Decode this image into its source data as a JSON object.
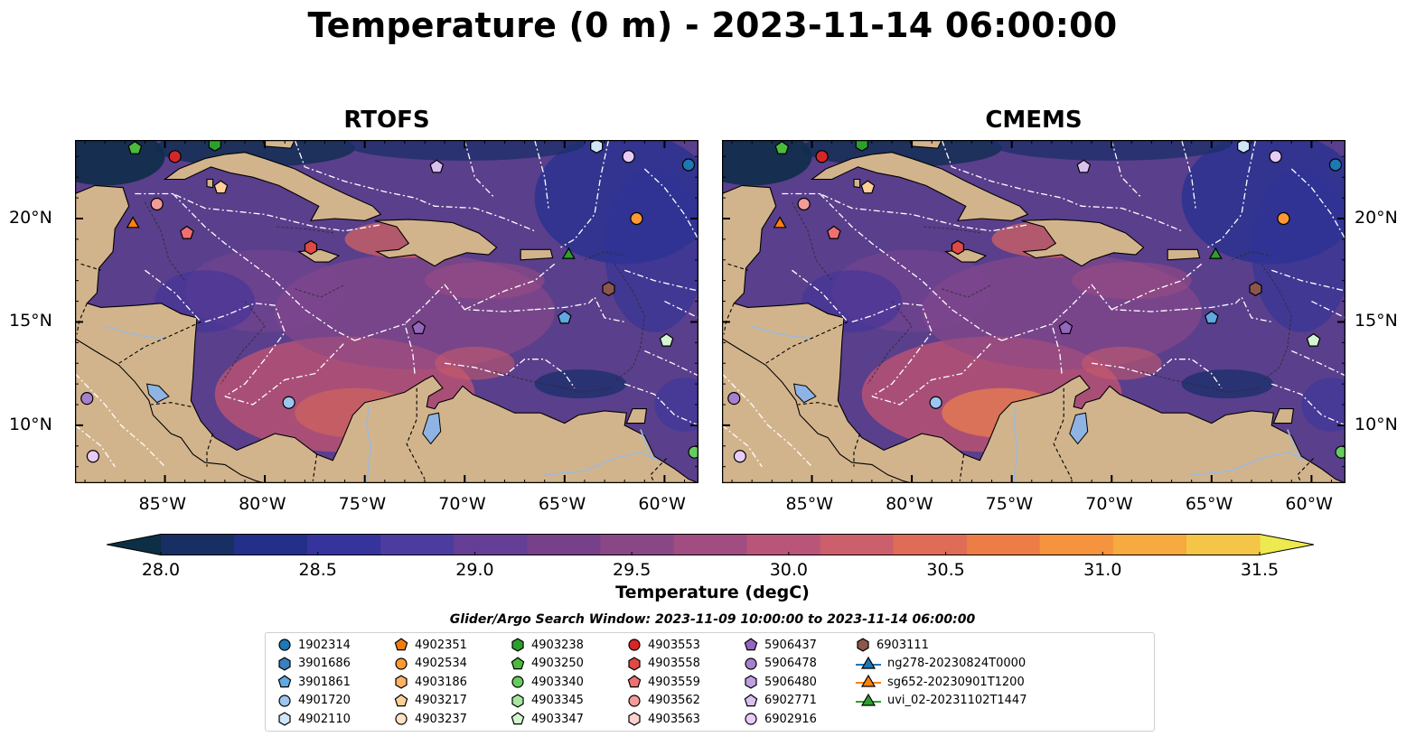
{
  "title": "Temperature (0 m) - 2023-11-14 06:00:00",
  "panels": [
    {
      "title": "RTOFS"
    },
    {
      "title": "CMEMS"
    }
  ],
  "map": {
    "lon_range": [
      -89.5,
      -58.3
    ],
    "lat_range": [
      7.2,
      23.8
    ],
    "lon_ticks": [
      -85,
      -80,
      -75,
      -70,
      -65,
      -60
    ],
    "lon_tick_labels": [
      "85°W",
      "80°W",
      "75°W",
      "70°W",
      "65°W",
      "60°W"
    ],
    "lat_ticks": [
      10,
      15,
      20
    ],
    "lat_tick_labels": [
      "10°N",
      "15°N",
      "20°N"
    ],
    "land_color": "#d2b48c",
    "ocean_color": "#5a3f8c"
  },
  "colorbar": {
    "min": 28.0,
    "max": 31.5,
    "ticks": [
      "28.0",
      "28.5",
      "29.0",
      "29.5",
      "30.0",
      "30.5",
      "31.0",
      "31.5"
    ],
    "label": "Temperature (degC)",
    "colors": [
      "#0c2f45",
      "#172f62",
      "#242f8a",
      "#37339c",
      "#4d3c9f",
      "#643f95",
      "#774189",
      "#8a4786",
      "#a14d82",
      "#b85579",
      "#cb5f6c",
      "#de6c57",
      "#ed7d47",
      "#f5933f",
      "#f7aa3f",
      "#f5c547",
      "#edea4f"
    ]
  },
  "legend": {
    "title": "Glider/Argo Search Window: 2023-11-09 10:00:00 to 2023-11-14 06:00:00",
    "items": [
      {
        "label": "1902314",
        "shape": "circle",
        "color": "#1f77b4"
      },
      {
        "label": "3901686",
        "shape": "hexagon",
        "color": "#3a7fc0"
      },
      {
        "label": "3901861",
        "shape": "pentagon",
        "color": "#5fa8e0"
      },
      {
        "label": "4901720",
        "shape": "circle",
        "color": "#9ac6ef"
      },
      {
        "label": "4902110",
        "shape": "hexagon",
        "color": "#cfe6fa"
      },
      {
        "label": "4902351",
        "shape": "pentagon",
        "color": "#f07c12"
      },
      {
        "label": "4902534",
        "shape": "circle",
        "color": "#ff9933"
      },
      {
        "label": "4903186",
        "shape": "hexagon",
        "color": "#ffb266"
      },
      {
        "label": "4903217",
        "shape": "pentagon",
        "color": "#ffcf99"
      },
      {
        "label": "4903237",
        "shape": "circle",
        "color": "#ffe2c4"
      },
      {
        "label": "4903238",
        "shape": "hexagon",
        "color": "#2ca02c"
      },
      {
        "label": "4903250",
        "shape": "pentagon",
        "color": "#4cba3c"
      },
      {
        "label": "4903340",
        "shape": "circle",
        "color": "#66cc5e"
      },
      {
        "label": "4903345",
        "shape": "hexagon",
        "color": "#a8e6a0"
      },
      {
        "label": "4903347",
        "shape": "pentagon",
        "color": "#d4f5cf"
      },
      {
        "label": "4903553",
        "shape": "circle",
        "color": "#d62728"
      },
      {
        "label": "4903558",
        "shape": "hexagon",
        "color": "#e04a45"
      },
      {
        "label": "4903559",
        "shape": "pentagon",
        "color": "#f07072"
      },
      {
        "label": "4903562",
        "shape": "circle",
        "color": "#f49b98"
      },
      {
        "label": "4903563",
        "shape": "hexagon",
        "color": "#fad2cf"
      },
      {
        "label": "5906437",
        "shape": "pentagon",
        "color": "#9467bd"
      },
      {
        "label": "5906478",
        "shape": "circle",
        "color": "#a680cc"
      },
      {
        "label": "5906480",
        "shape": "hexagon",
        "color": "#bf9fe0"
      },
      {
        "label": "6902771",
        "shape": "pentagon",
        "color": "#d8c0f0"
      },
      {
        "label": "6902916",
        "shape": "circle",
        "color": "#e6ccf7"
      },
      {
        "label": "6903111",
        "shape": "hexagon",
        "color": "#8c564b"
      },
      {
        "label": "ng278-20230824T0000",
        "shape": "triangle-line",
        "color": "#1f77b4"
      },
      {
        "label": "sg652-20230901T1200",
        "shape": "triangle-line",
        "color": "#ff7f0e"
      },
      {
        "label": "uvi_02-20231102T1447",
        "shape": "triangle-line",
        "color": "#2ca02c"
      }
    ]
  },
  "markers": [
    {
      "legend": "4903250",
      "lon": -86.5,
      "lat": 23.4
    },
    {
      "legend": "4903553",
      "lon": -84.5,
      "lat": 23.0
    },
    {
      "legend": "4903238",
      "lon": -82.5,
      "lat": 23.6
    },
    {
      "legend": "4903217",
      "lon": -82.2,
      "lat": 21.5
    },
    {
      "legend": "4903562",
      "lon": -85.4,
      "lat": 20.7
    },
    {
      "legend": "sg652-20230901T1200",
      "lon": -86.6,
      "lat": 19.8
    },
    {
      "legend": "4903559",
      "lon": -83.9,
      "lat": 19.3
    },
    {
      "legend": "4903558",
      "lon": -77.7,
      "lat": 18.6
    },
    {
      "legend": "6902771",
      "lon": -71.4,
      "lat": 22.5
    },
    {
      "legend": "4902110",
      "lon": -63.4,
      "lat": 23.5
    },
    {
      "legend": "6902916",
      "lon": -61.8,
      "lat": 23.0
    },
    {
      "legend": "1902314",
      "lon": -58.8,
      "lat": 22.6
    },
    {
      "legend": "4902534",
      "lon": -61.4,
      "lat": 20.0
    },
    {
      "legend": "uvi_02-20231102T1447",
      "lon": -64.8,
      "lat": 18.3
    },
    {
      "legend": "6903111",
      "lon": -62.8,
      "lat": 16.6
    },
    {
      "legend": "3901861",
      "lon": -65.0,
      "lat": 15.2
    },
    {
      "legend": "5906437",
      "lon": -72.3,
      "lat": 14.7
    },
    {
      "legend": "4903347",
      "lon": -59.9,
      "lat": 14.1
    },
    {
      "legend": "4901720",
      "lon": -78.8,
      "lat": 11.1
    },
    {
      "legend": "5906478",
      "lon": -88.9,
      "lat": 11.3
    },
    {
      "legend": "6902916",
      "lon": -88.6,
      "lat": 8.5
    },
    {
      "legend": "4903340",
      "lon": -58.5,
      "lat": 8.7
    }
  ]
}
